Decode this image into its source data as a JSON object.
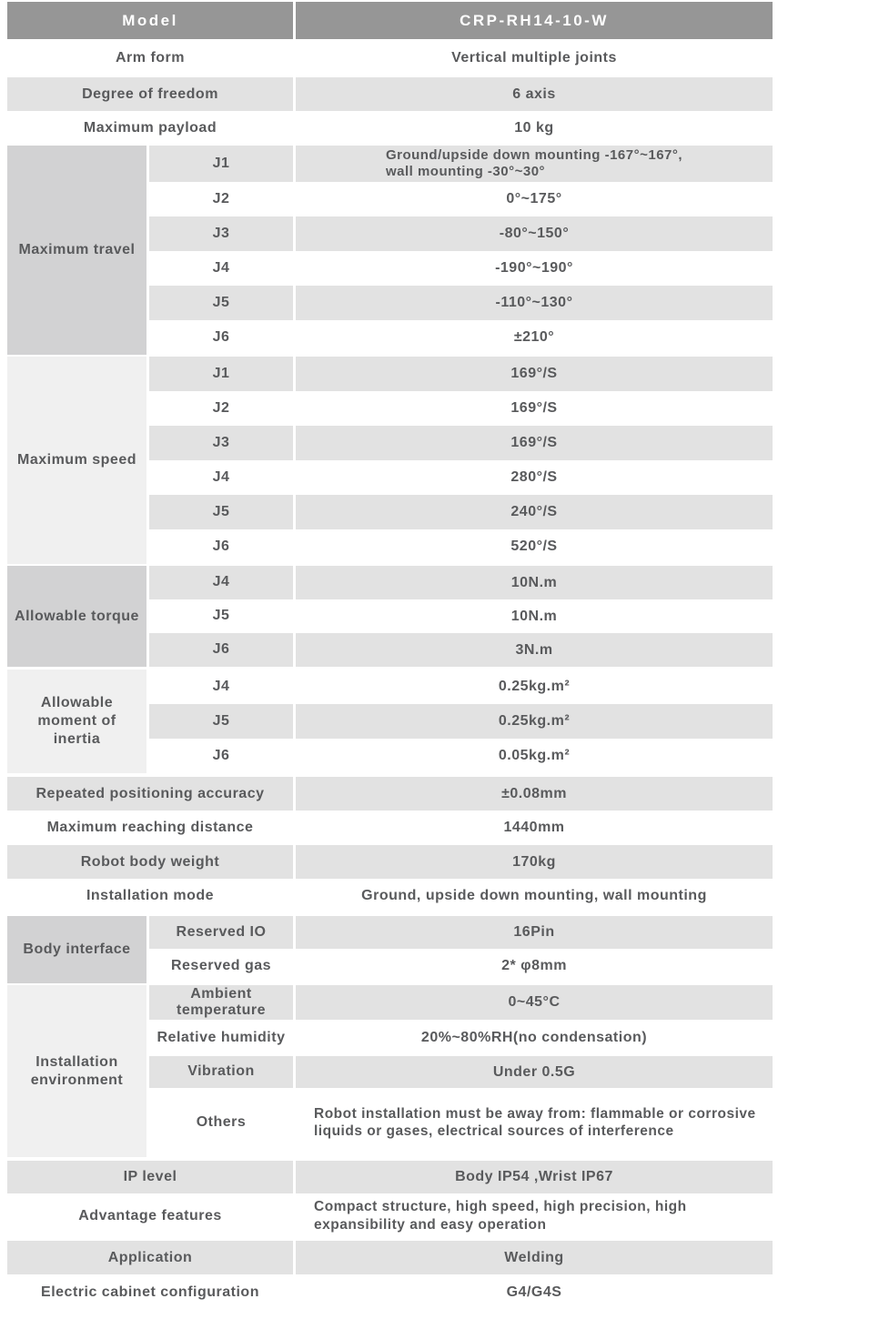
{
  "colors": {
    "header_bg": "#969696",
    "header_text": "#ffffff",
    "row_shade": "#e2e2e2",
    "section_dark": "#d2d2d3",
    "section_light": "#f0f0f0",
    "text": "#595a5c"
  },
  "table": {
    "header": {
      "label": "Model",
      "value": "CRP-RH14-10-W"
    },
    "rows_top": [
      {
        "label": "Arm form",
        "value": "Vertical multiple joints"
      },
      {
        "label": "Degree of freedom",
        "value": "6 axis"
      },
      {
        "label": "Maximum payload",
        "value": "10 kg"
      }
    ],
    "max_travel": {
      "title": "Maximum travel",
      "rows": [
        {
          "joint": "J1",
          "value_line1": "Ground/upside down mounting -167°~167°,",
          "value_line2": "wall mounting -30°~30°"
        },
        {
          "joint": "J2",
          "value": "0°~175°"
        },
        {
          "joint": "J3",
          "value": "-80°~150°"
        },
        {
          "joint": "J4",
          "value": "-190°~190°"
        },
        {
          "joint": "J5",
          "value": "-110°~130°"
        },
        {
          "joint": "J6",
          "value": "±210°"
        }
      ]
    },
    "max_speed": {
      "title": "Maximum speed",
      "rows": [
        {
          "joint": "J1",
          "value": "169°/S"
        },
        {
          "joint": "J2",
          "value": "169°/S"
        },
        {
          "joint": "J3",
          "value": "169°/S"
        },
        {
          "joint": "J4",
          "value": "280°/S"
        },
        {
          "joint": "J5",
          "value": "240°/S"
        },
        {
          "joint": "J6",
          "value": "520°/S"
        }
      ]
    },
    "allowable_torque": {
      "title": "Allowable torque",
      "rows": [
        {
          "joint": "J4",
          "value": "10N.m"
        },
        {
          "joint": "J5",
          "value": "10N.m"
        },
        {
          "joint": "J6",
          "value": "3N.m"
        }
      ]
    },
    "moment_inertia": {
      "title": "Allowable moment of inertia",
      "rows": [
        {
          "joint": "J4",
          "value": "0.25kg.m²"
        },
        {
          "joint": "J5",
          "value": "0.25kg.m²"
        },
        {
          "joint": "J6",
          "value": "0.05kg.m²"
        }
      ]
    },
    "rows_mid": [
      {
        "label": "Repeated positioning accuracy",
        "value": "±0.08mm"
      },
      {
        "label": "Maximum reaching distance",
        "value": "1440mm"
      },
      {
        "label": "Robot body weight",
        "value": "170kg"
      },
      {
        "label": "Installation mode",
        "value": "Ground, upside down mounting, wall mounting"
      }
    ],
    "body_interface": {
      "title": "Body interface",
      "rows": [
        {
          "label": "Reserved IO",
          "value": "16Pin"
        },
        {
          "label": "Reserved gas",
          "value": "2* φ8mm"
        }
      ]
    },
    "install_env": {
      "title": "Installation environment",
      "rows": [
        {
          "label": "Ambient temperature",
          "value": "0~45°C"
        },
        {
          "label": "Relative humidity",
          "value": "20%~80%RH(no condensation)"
        },
        {
          "label": "Vibration",
          "value": "Under 0.5G"
        },
        {
          "label": "Others",
          "value": "Robot installation must be away from: flammable or corrosive liquids or gases, electrical sources of interference"
        }
      ]
    },
    "rows_bottom": [
      {
        "label": "IP level",
        "value": "Body IP54 ,Wrist IP67"
      },
      {
        "label": "Advantage features",
        "value": "Compact structure, high speed, high precision, high expansibility and easy operation"
      },
      {
        "label": "Application",
        "value": "Welding"
      },
      {
        "label": "Electric cabinet configuration",
        "value": "G4/G4S"
      }
    ]
  }
}
